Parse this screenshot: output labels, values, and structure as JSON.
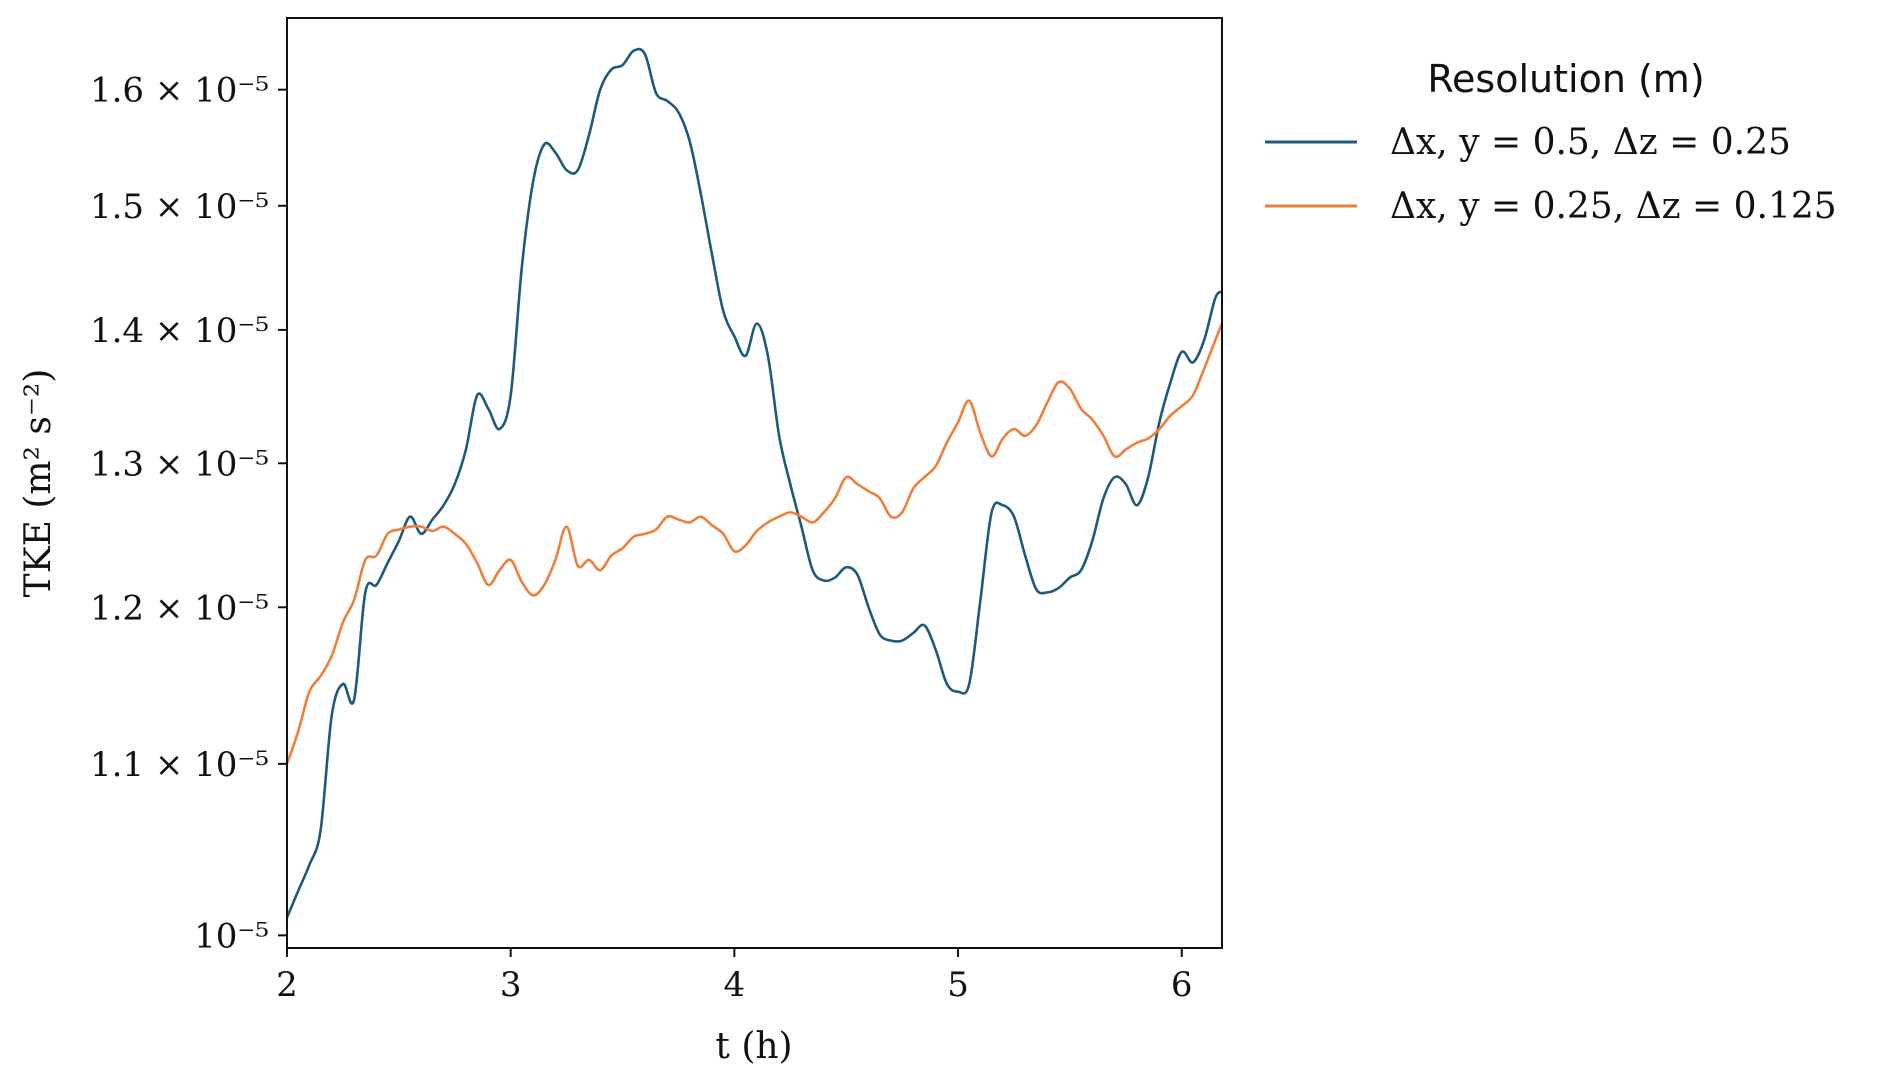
{
  "chart_data": {
    "type": "line",
    "title": "",
    "xlabel": "t (h)",
    "ylabel": "TKE (m² s⁻²)",
    "xlim": [
      2,
      6.18
    ],
    "ylim": [
      9.93e-06,
      1.665e-05
    ],
    "yscale": "log",
    "grid": false,
    "x_ticks": [
      {
        "value": 2,
        "label": "2"
      },
      {
        "value": 3,
        "label": "3"
      },
      {
        "value": 4,
        "label": "4"
      },
      {
        "value": 5,
        "label": "5"
      },
      {
        "value": 6,
        "label": "6"
      }
    ],
    "y_ticks": [
      {
        "value": 1e-05,
        "label": "10⁻⁵"
      },
      {
        "value": 1.1e-05,
        "label": "1.1 × 10⁻⁵"
      },
      {
        "value": 1.2e-05,
        "label": "1.2 × 10⁻⁵"
      },
      {
        "value": 1.3e-05,
        "label": "1.3 × 10⁻⁵"
      },
      {
        "value": 1.4e-05,
        "label": "1.4 × 10⁻⁵"
      },
      {
        "value": 1.5e-05,
        "label": "1.5 × 10⁻⁵"
      },
      {
        "value": 1.6e-05,
        "label": "1.6 × 10⁻⁵"
      }
    ],
    "legend": {
      "title": "Resolution (m)",
      "placement": "outside-right-top"
    },
    "series": [
      {
        "name": "Δx, y = 0.5, Δz = 0.25",
        "color": "#1f5a7a",
        "x": [
          2.0,
          2.05,
          2.1,
          2.15,
          2.2,
          2.25,
          2.3,
          2.35,
          2.4,
          2.45,
          2.5,
          2.55,
          2.6,
          2.65,
          2.7,
          2.75,
          2.8,
          2.85,
          2.9,
          2.95,
          3.0,
          3.05,
          3.1,
          3.15,
          3.2,
          3.25,
          3.3,
          3.35,
          3.4,
          3.45,
          3.5,
          3.55,
          3.6,
          3.65,
          3.7,
          3.75,
          3.8,
          3.85,
          3.9,
          3.95,
          4.0,
          4.05,
          4.1,
          4.15,
          4.2,
          4.25,
          4.3,
          4.35,
          4.4,
          4.45,
          4.5,
          4.55,
          4.6,
          4.65,
          4.7,
          4.75,
          4.8,
          4.85,
          4.9,
          4.95,
          5.0,
          5.05,
          5.1,
          5.15,
          5.2,
          5.25,
          5.3,
          5.35,
          5.4,
          5.45,
          5.5,
          5.55,
          5.6,
          5.65,
          5.7,
          5.75,
          5.8,
          5.85,
          5.9,
          5.95,
          6.0,
          6.05,
          6.1,
          6.15,
          6.18
        ],
        "values": [
          1.01e-05,
          1.025e-05,
          1.04e-05,
          1.06e-05,
          1.13e-05,
          1.15e-05,
          1.14e-05,
          1.21e-05,
          1.215e-05,
          1.23e-05,
          1.245e-05,
          1.262e-05,
          1.25e-05,
          1.26e-05,
          1.27e-05,
          1.285e-05,
          1.31e-05,
          1.35e-05,
          1.34e-05,
          1.325e-05,
          1.35e-05,
          1.45e-05,
          1.52e-05,
          1.552e-05,
          1.545e-05,
          1.53e-05,
          1.53e-05,
          1.56e-05,
          1.6e-05,
          1.618e-05,
          1.622e-05,
          1.635e-05,
          1.632e-05,
          1.597e-05,
          1.59e-05,
          1.58e-05,
          1.555e-05,
          1.51e-05,
          1.46e-05,
          1.415e-05,
          1.395e-05,
          1.38e-05,
          1.405e-05,
          1.38e-05,
          1.32e-05,
          1.285e-05,
          1.255e-05,
          1.225e-05,
          1.218e-05,
          1.22e-05,
          1.227e-05,
          1.222e-05,
          1.2e-05,
          1.182e-05,
          1.178e-05,
          1.178e-05,
          1.183e-05,
          1.188e-05,
          1.172e-05,
          1.15e-05,
          1.145e-05,
          1.15e-05,
          1.205e-05,
          1.265e-05,
          1.27e-05,
          1.262e-05,
          1.235e-05,
          1.212e-05,
          1.21e-05,
          1.213e-05,
          1.22e-05,
          1.225e-05,
          1.245e-05,
          1.275e-05,
          1.29e-05,
          1.285e-05,
          1.27e-05,
          1.29e-05,
          1.33e-05,
          1.36e-05,
          1.383e-05,
          1.375e-05,
          1.392e-05,
          1.425e-05,
          1.43e-05
        ]
      },
      {
        "name": "Δx, y = 0.25, Δz = 0.125",
        "color": "#f07f3c",
        "x": [
          2.0,
          2.05,
          2.1,
          2.15,
          2.2,
          2.25,
          2.3,
          2.35,
          2.4,
          2.45,
          2.5,
          2.55,
          2.6,
          2.65,
          2.7,
          2.75,
          2.8,
          2.85,
          2.9,
          2.95,
          3.0,
          3.05,
          3.1,
          3.15,
          3.2,
          3.25,
          3.3,
          3.35,
          3.4,
          3.45,
          3.5,
          3.55,
          3.6,
          3.65,
          3.7,
          3.75,
          3.8,
          3.85,
          3.9,
          3.95,
          4.0,
          4.05,
          4.1,
          4.15,
          4.2,
          4.25,
          4.3,
          4.35,
          4.4,
          4.45,
          4.5,
          4.55,
          4.6,
          4.65,
          4.7,
          4.75,
          4.8,
          4.85,
          4.9,
          4.95,
          5.0,
          5.05,
          5.1,
          5.15,
          5.2,
          5.25,
          5.3,
          5.35,
          5.4,
          5.45,
          5.5,
          5.55,
          5.6,
          5.65,
          5.7,
          5.75,
          5.8,
          5.85,
          5.9,
          5.95,
          6.0,
          6.05,
          6.1,
          6.15,
          6.18
        ],
        "values": [
          1.1e-05,
          1.12e-05,
          1.145e-05,
          1.155e-05,
          1.168e-05,
          1.19e-05,
          1.205e-05,
          1.232e-05,
          1.235e-05,
          1.25e-05,
          1.253e-05,
          1.255e-05,
          1.255e-05,
          1.252e-05,
          1.255e-05,
          1.25e-05,
          1.243e-05,
          1.23e-05,
          1.215e-05,
          1.225e-05,
          1.232e-05,
          1.217e-05,
          1.208e-05,
          1.215e-05,
          1.232e-05,
          1.255e-05,
          1.228e-05,
          1.232e-05,
          1.225e-05,
          1.235e-05,
          1.24e-05,
          1.248e-05,
          1.25e-05,
          1.253e-05,
          1.262e-05,
          1.26e-05,
          1.258e-05,
          1.262e-05,
          1.256e-05,
          1.25e-05,
          1.238e-05,
          1.242e-05,
          1.252e-05,
          1.258e-05,
          1.262e-05,
          1.265e-05,
          1.262e-05,
          1.258e-05,
          1.265e-05,
          1.275e-05,
          1.29e-05,
          1.285e-05,
          1.28e-05,
          1.275e-05,
          1.262e-05,
          1.265e-05,
          1.282e-05,
          1.29e-05,
          1.298e-05,
          1.315e-05,
          1.33e-05,
          1.346e-05,
          1.322e-05,
          1.305e-05,
          1.318e-05,
          1.325e-05,
          1.32e-05,
          1.328e-05,
          1.345e-05,
          1.36e-05,
          1.355e-05,
          1.34e-05,
          1.332e-05,
          1.32e-05,
          1.305e-05,
          1.31e-05,
          1.315e-05,
          1.318e-05,
          1.325e-05,
          1.335e-05,
          1.342e-05,
          1.35e-05,
          1.37e-05,
          1.392e-05,
          1.405e-05
        ]
      }
    ]
  }
}
